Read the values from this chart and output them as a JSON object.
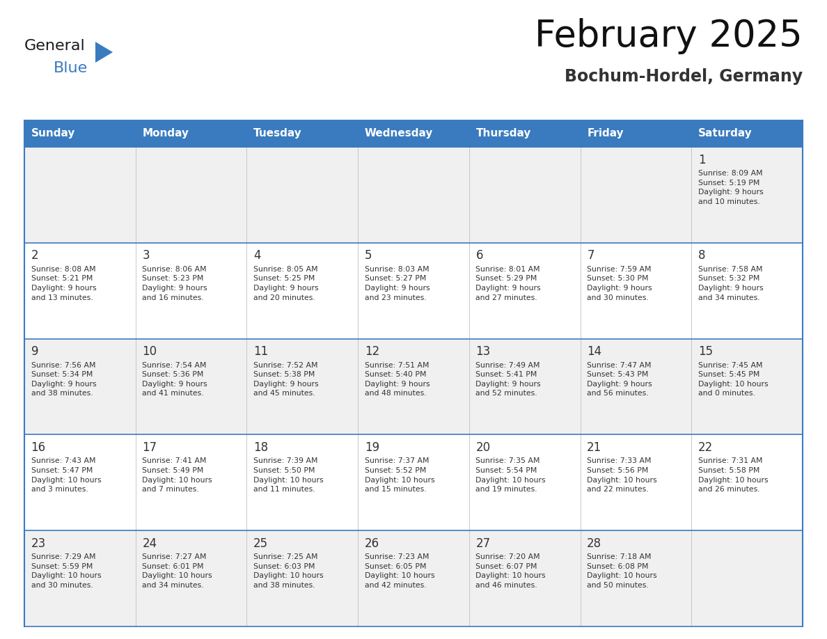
{
  "title": "February 2025",
  "subtitle": "Bochum-Hordel, Germany",
  "days_of_week": [
    "Sunday",
    "Monday",
    "Tuesday",
    "Wednesday",
    "Thursday",
    "Friday",
    "Saturday"
  ],
  "header_bg": "#3a7bbf",
  "header_text": "#ffffff",
  "row_bg_light": "#f0f0f0",
  "row_bg_white": "#ffffff",
  "cell_border_color": "#3a7bbf",
  "day_num_color": "#333333",
  "info_color": "#333333",
  "calendar_data": [
    [
      null,
      null,
      null,
      null,
      null,
      null,
      {
        "day": 1,
        "sunrise": "8:09 AM",
        "sunset": "5:19 PM",
        "daylight": "9 hours\nand 10 minutes."
      }
    ],
    [
      {
        "day": 2,
        "sunrise": "8:08 AM",
        "sunset": "5:21 PM",
        "daylight": "9 hours\nand 13 minutes."
      },
      {
        "day": 3,
        "sunrise": "8:06 AM",
        "sunset": "5:23 PM",
        "daylight": "9 hours\nand 16 minutes."
      },
      {
        "day": 4,
        "sunrise": "8:05 AM",
        "sunset": "5:25 PM",
        "daylight": "9 hours\nand 20 minutes."
      },
      {
        "day": 5,
        "sunrise": "8:03 AM",
        "sunset": "5:27 PM",
        "daylight": "9 hours\nand 23 minutes."
      },
      {
        "day": 6,
        "sunrise": "8:01 AM",
        "sunset": "5:29 PM",
        "daylight": "9 hours\nand 27 minutes."
      },
      {
        "day": 7,
        "sunrise": "7:59 AM",
        "sunset": "5:30 PM",
        "daylight": "9 hours\nand 30 minutes."
      },
      {
        "day": 8,
        "sunrise": "7:58 AM",
        "sunset": "5:32 PM",
        "daylight": "9 hours\nand 34 minutes."
      }
    ],
    [
      {
        "day": 9,
        "sunrise": "7:56 AM",
        "sunset": "5:34 PM",
        "daylight": "9 hours\nand 38 minutes."
      },
      {
        "day": 10,
        "sunrise": "7:54 AM",
        "sunset": "5:36 PM",
        "daylight": "9 hours\nand 41 minutes."
      },
      {
        "day": 11,
        "sunrise": "7:52 AM",
        "sunset": "5:38 PM",
        "daylight": "9 hours\nand 45 minutes."
      },
      {
        "day": 12,
        "sunrise": "7:51 AM",
        "sunset": "5:40 PM",
        "daylight": "9 hours\nand 48 minutes."
      },
      {
        "day": 13,
        "sunrise": "7:49 AM",
        "sunset": "5:41 PM",
        "daylight": "9 hours\nand 52 minutes."
      },
      {
        "day": 14,
        "sunrise": "7:47 AM",
        "sunset": "5:43 PM",
        "daylight": "9 hours\nand 56 minutes."
      },
      {
        "day": 15,
        "sunrise": "7:45 AM",
        "sunset": "5:45 PM",
        "daylight": "10 hours\nand 0 minutes."
      }
    ],
    [
      {
        "day": 16,
        "sunrise": "7:43 AM",
        "sunset": "5:47 PM",
        "daylight": "10 hours\nand 3 minutes."
      },
      {
        "day": 17,
        "sunrise": "7:41 AM",
        "sunset": "5:49 PM",
        "daylight": "10 hours\nand 7 minutes."
      },
      {
        "day": 18,
        "sunrise": "7:39 AM",
        "sunset": "5:50 PM",
        "daylight": "10 hours\nand 11 minutes."
      },
      {
        "day": 19,
        "sunrise": "7:37 AM",
        "sunset": "5:52 PM",
        "daylight": "10 hours\nand 15 minutes."
      },
      {
        "day": 20,
        "sunrise": "7:35 AM",
        "sunset": "5:54 PM",
        "daylight": "10 hours\nand 19 minutes."
      },
      {
        "day": 21,
        "sunrise": "7:33 AM",
        "sunset": "5:56 PM",
        "daylight": "10 hours\nand 22 minutes."
      },
      {
        "day": 22,
        "sunrise": "7:31 AM",
        "sunset": "5:58 PM",
        "daylight": "10 hours\nand 26 minutes."
      }
    ],
    [
      {
        "day": 23,
        "sunrise": "7:29 AM",
        "sunset": "5:59 PM",
        "daylight": "10 hours\nand 30 minutes."
      },
      {
        "day": 24,
        "sunrise": "7:27 AM",
        "sunset": "6:01 PM",
        "daylight": "10 hours\nand 34 minutes."
      },
      {
        "day": 25,
        "sunrise": "7:25 AM",
        "sunset": "6:03 PM",
        "daylight": "10 hours\nand 38 minutes."
      },
      {
        "day": 26,
        "sunrise": "7:23 AM",
        "sunset": "6:05 PM",
        "daylight": "10 hours\nand 42 minutes."
      },
      {
        "day": 27,
        "sunrise": "7:20 AM",
        "sunset": "6:07 PM",
        "daylight": "10 hours\nand 46 minutes."
      },
      {
        "day": 28,
        "sunrise": "7:18 AM",
        "sunset": "6:08 PM",
        "daylight": "10 hours\nand 50 minutes."
      },
      null
    ]
  ],
  "logo_text_general": "General",
  "logo_text_blue": "Blue",
  "logo_color_general": "#1a1a1a",
  "logo_color_blue": "#3a7bbf",
  "title_fontsize": 38,
  "subtitle_fontsize": 17,
  "header_fontsize": 11,
  "day_num_fontsize": 12,
  "info_fontsize": 7.8
}
